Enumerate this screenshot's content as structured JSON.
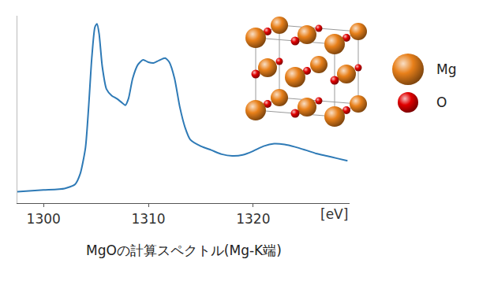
{
  "chart_data": {
    "type": "line",
    "title": "MgOの計算スペクトル(Mg-K端)",
    "xlabel": "[eV]",
    "x": [
      1297.5,
      1300,
      1302,
      1303,
      1303.5,
      1304,
      1304.3,
      1304.6,
      1304.9,
      1305.1,
      1305.3,
      1305.6,
      1306,
      1306.5,
      1307,
      1307.5,
      1307.8,
      1308.1,
      1308.5,
      1309,
      1309.5,
      1310,
      1310.5,
      1311,
      1311.6,
      1312,
      1312.5,
      1313,
      1313.5,
      1314,
      1315,
      1316,
      1317,
      1318,
      1319,
      1320,
      1321,
      1322,
      1323,
      1324,
      1325,
      1326,
      1327,
      1328,
      1329
    ],
    "values": [
      0.061,
      0.07,
      0.078,
      0.1,
      0.157,
      0.296,
      0.513,
      0.774,
      0.939,
      0.957,
      0.904,
      0.73,
      0.609,
      0.574,
      0.557,
      0.535,
      0.522,
      0.557,
      0.665,
      0.739,
      0.765,
      0.752,
      0.748,
      0.761,
      0.774,
      0.752,
      0.665,
      0.513,
      0.404,
      0.339,
      0.304,
      0.283,
      0.261,
      0.252,
      0.257,
      0.278,
      0.304,
      0.317,
      0.313,
      0.3,
      0.283,
      0.265,
      0.252,
      0.239,
      0.226
    ],
    "color": "#2e7ab6",
    "xlim": [
      1297.5,
      1329.2
    ],
    "xticks": [
      1300,
      1310,
      1320
    ],
    "ylim": [
      0,
      1
    ],
    "yticks": [],
    "tick_labels": "x",
    "grid": false
  },
  "legend_items": [
    {
      "label": "Mg",
      "color": "#e8801a"
    },
    {
      "label": "O",
      "color": "#e00000"
    }
  ]
}
